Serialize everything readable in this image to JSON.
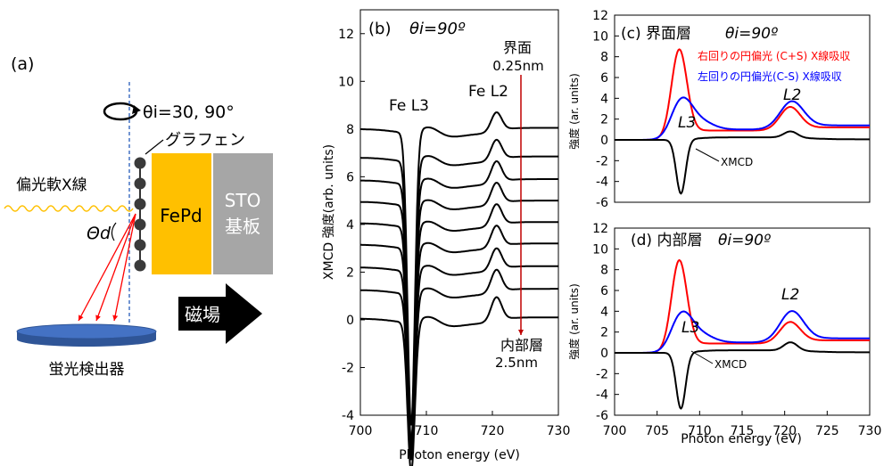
{
  "panel_a": {
    "label": "(a)",
    "theta_text": "θi=30, 90°",
    "graphene": "グラフェン",
    "xray": "偏光軟X線",
    "theta_d": "Θd",
    "fepd": "FePd",
    "sto_line1": "STO",
    "sto_line2": "基板",
    "magnet": "磁場",
    "detector": "蛍光検出器",
    "colors": {
      "fepd": "#ffc000",
      "sto": "#a6a6a6",
      "detector": "#4472c4",
      "xray": "#ffc000",
      "fluor": "#ff0000"
    }
  },
  "chart_data": [
    {
      "id": "b",
      "type": "line",
      "panel_label": "(b)",
      "theta": "θi=90º",
      "xlabel": "Photon energy (eV)",
      "ylabel": "XMCD 強度(arb. units)",
      "xlim": [
        700,
        730
      ],
      "ylim": [
        -4,
        13
      ],
      "xticks": [
        700,
        710,
        720,
        730
      ],
      "yticks": [
        -4,
        -2,
        0,
        2,
        4,
        6,
        8,
        10,
        12
      ],
      "annotations": {
        "l3": "Fe L3",
        "l2": "Fe L2",
        "top1": "界面",
        "top2": "0.25nm",
        "bot1": "内部層",
        "bot2": "2.5nm"
      },
      "spectra_offsets": [
        8.0,
        6.8,
        5.85,
        4.95,
        4.05,
        3.15,
        2.2,
        1.25,
        0.05
      ],
      "spectra_l3_dip": [
        -12.3,
        -11.9,
        -11.0,
        -10.1,
        -9.3,
        -8.6,
        -7.8,
        -7.0,
        -6.3
      ],
      "spectra_l2_peak": [
        0.8,
        0.85,
        0.9,
        0.9,
        0.9,
        0.9,
        0.9,
        0.95,
        1.0
      ]
    },
    {
      "id": "c",
      "type": "line",
      "panel_label": "(c) 界面層",
      "theta": "θi=90º",
      "xlabel": "",
      "ylabel": "強度 (ar. units)",
      "xlim": [
        700,
        730
      ],
      "ylim": [
        -6,
        12
      ],
      "yticks": [
        -6,
        -4,
        -2,
        0,
        2,
        4,
        6,
        8,
        10,
        12
      ],
      "legend": [
        "右回りの円偏光 (C+S) X線吸収",
        "左回りの円偏光(C-S) X線吸収"
      ],
      "labels": {
        "l3": "L3",
        "l2": "L2",
        "xmcd": "XMCD"
      },
      "series": [
        {
          "name": "右回りの円偏光 (C+S) X線吸収",
          "color": "#ff0000",
          "l3_peak": 8.8,
          "l2_peak": 2.5,
          "post_edge": 0.9
        },
        {
          "name": "左回りの円偏光(C-S) X線吸収",
          "color": "#0000ff",
          "l3_peak": 3.8,
          "l2_peak": 3.0,
          "post_edge": 1.0
        },
        {
          "name": "XMCD",
          "color": "#000000",
          "l3_dip": -5.2,
          "l2_peak": 0.6
        }
      ]
    },
    {
      "id": "d",
      "type": "line",
      "panel_label": "(d) 内部層",
      "theta": "θi=90º",
      "xlabel": "Photon energy (eV)",
      "ylabel": "強度 (ar. units)",
      "xlim": [
        700,
        730
      ],
      "ylim": [
        -6,
        12
      ],
      "xticks": [
        700,
        705,
        710,
        715,
        720,
        725,
        730
      ],
      "yticks": [
        -6,
        -4,
        -2,
        0,
        2,
        4,
        6,
        8,
        10,
        12
      ],
      "labels": {
        "l3": "L3",
        "l2": "L2",
        "xmcd": "XMCD"
      },
      "series": [
        {
          "name": "右回りの円偏光 (C+S) X線吸収",
          "color": "#ff0000",
          "l3_peak": 9.0,
          "l2_peak": 2.3,
          "post_edge": 0.9
        },
        {
          "name": "左回りの円偏光(C-S) X線吸収",
          "color": "#0000ff",
          "l3_peak": 3.7,
          "l2_peak": 3.3,
          "post_edge": 1.0
        },
        {
          "name": "XMCD",
          "color": "#000000",
          "l3_dip": -5.4,
          "l2_peak": 0.8
        }
      ]
    }
  ]
}
